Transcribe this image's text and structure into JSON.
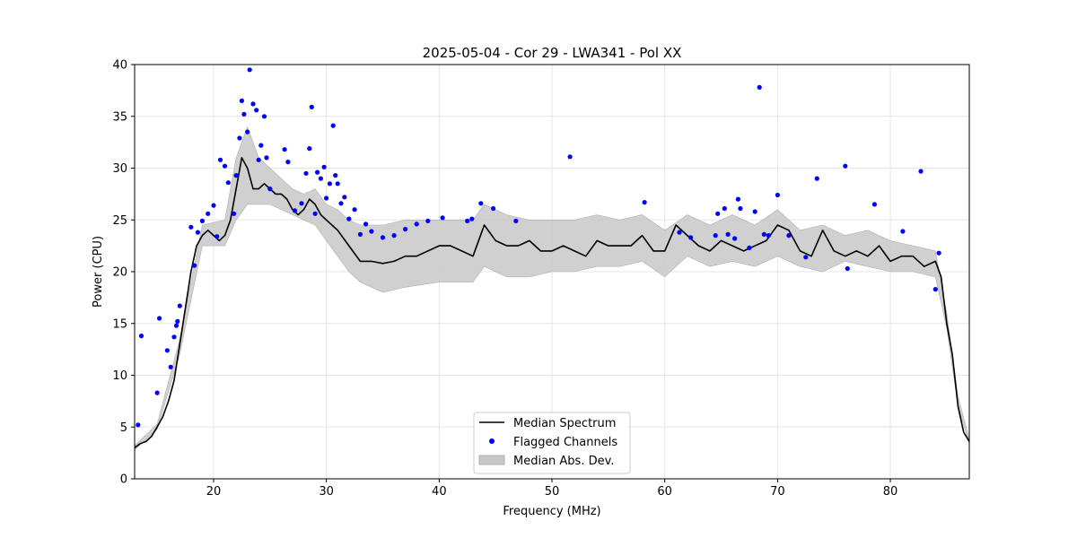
{
  "chart_data": {
    "type": "line",
    "title": "2025-05-04 - Cor 29 - LWA341 - Pol XX",
    "xlabel": "Frequency (MHz)",
    "ylabel": "Power (CPU)",
    "xlim": [
      13.0,
      87.0
    ],
    "ylim": [
      0,
      40
    ],
    "xticks": [
      20,
      30,
      40,
      50,
      60,
      70,
      80
    ],
    "yticks": [
      0,
      5,
      10,
      15,
      20,
      25,
      30,
      35,
      40
    ],
    "grid": true,
    "legend": {
      "placement": "lower center",
      "entries": [
        "Median Spectrum",
        "Flagged Channels",
        "Median Abs. Dev."
      ]
    },
    "colors": {
      "median": "#000000",
      "flagged": "#0000ff",
      "mad_fill": "#c8c8c8",
      "grid": "#e6e6e6"
    },
    "series": [
      {
        "name": "Median Spectrum",
        "x": [
          13.0,
          13.5,
          14.0,
          14.5,
          15.0,
          15.5,
          16.0,
          16.5,
          17.0,
          17.5,
          18.0,
          18.5,
          19.0,
          19.5,
          20.0,
          20.5,
          21.0,
          21.5,
          22.0,
          22.5,
          23.0,
          23.5,
          24.0,
          24.5,
          25.0,
          25.5,
          26.0,
          26.5,
          27.0,
          27.5,
          28.0,
          28.5,
          29.0,
          29.5,
          30.0,
          30.5,
          31.0,
          32.0,
          33.0,
          34.0,
          35.0,
          36.0,
          37.0,
          38.0,
          39.0,
          40.0,
          41.0,
          42.0,
          43.0,
          44.0,
          45.0,
          46.0,
          47.0,
          48.0,
          49.0,
          50.0,
          51.0,
          52.0,
          53.0,
          54.0,
          55.0,
          56.0,
          57.0,
          58.0,
          59.0,
          60.0,
          61.0,
          62.0,
          63.0,
          64.0,
          65.0,
          66.0,
          67.0,
          68.0,
          69.0,
          70.0,
          71.0,
          72.0,
          73.0,
          74.0,
          75.0,
          76.0,
          77.0,
          78.0,
          79.0,
          80.0,
          81.0,
          82.0,
          83.0,
          84.0,
          84.5,
          85.0,
          85.5,
          86.0,
          86.5,
          87.0
        ],
        "values": [
          3.0,
          3.4,
          3.6,
          4.1,
          5.0,
          6.0,
          7.5,
          9.5,
          13.0,
          16.5,
          20.0,
          22.5,
          23.5,
          24.0,
          23.5,
          23.0,
          23.5,
          25.0,
          28.0,
          31.0,
          30.0,
          28.0,
          28.0,
          28.5,
          28.0,
          27.5,
          27.5,
          27.0,
          26.0,
          25.5,
          26.0,
          27.0,
          26.5,
          25.5,
          25.0,
          24.5,
          24.0,
          22.5,
          21.0,
          21.0,
          20.8,
          21.0,
          21.5,
          21.5,
          22.0,
          22.5,
          22.5,
          22.0,
          21.5,
          24.5,
          23.0,
          22.5,
          22.5,
          23.0,
          22.0,
          22.0,
          22.5,
          22.0,
          21.5,
          23.0,
          22.5,
          22.5,
          22.5,
          23.5,
          22.0,
          22.0,
          24.5,
          23.5,
          22.5,
          22.0,
          23.0,
          22.5,
          22.0,
          22.5,
          23.0,
          24.5,
          24.0,
          22.0,
          21.5,
          24.0,
          22.0,
          21.5,
          22.0,
          21.5,
          22.5,
          21.0,
          21.5,
          21.5,
          20.5,
          21.0,
          19.5,
          15.0,
          12.0,
          7.0,
          4.5,
          3.6
        ]
      },
      {
        "name": "Median Abs. Dev.",
        "x": [
          13.0,
          15.0,
          17.0,
          19.0,
          21.0,
          22.0,
          23.0,
          24.0,
          25.0,
          26.0,
          27.0,
          28.0,
          29.0,
          30.0,
          31.0,
          32.0,
          33.0,
          34.0,
          35.0,
          37.0,
          40.0,
          43.0,
          44.0,
          46.0,
          48.0,
          50.0,
          52.0,
          54.0,
          56.0,
          58.0,
          60.0,
          62.0,
          64.0,
          66.0,
          68.0,
          70.0,
          72.0,
          74.0,
          76.0,
          78.0,
          80.0,
          82.0,
          84.0,
          85.0,
          86.0,
          87.0
        ],
        "lower": [
          2.8,
          4.8,
          12.0,
          22.5,
          22.5,
          25.0,
          26.5,
          26.5,
          26.5,
          26.0,
          25.5,
          25.0,
          24.5,
          23.0,
          21.5,
          20.0,
          19.0,
          18.5,
          18.0,
          18.5,
          19.0,
          19.0,
          20.5,
          19.5,
          19.5,
          20.0,
          20.0,
          20.5,
          20.5,
          21.0,
          19.5,
          21.5,
          20.5,
          21.0,
          20.5,
          21.5,
          20.5,
          20.0,
          21.0,
          20.5,
          20.0,
          20.0,
          19.5,
          14.5,
          7.0,
          3.4
        ],
        "upper": [
          3.2,
          5.3,
          13.5,
          24.5,
          25.0,
          31.0,
          34.0,
          31.0,
          30.0,
          29.0,
          28.0,
          27.5,
          28.0,
          26.5,
          26.0,
          25.0,
          24.5,
          24.5,
          24.5,
          25.0,
          25.0,
          25.0,
          26.5,
          25.5,
          25.0,
          25.0,
          25.0,
          25.5,
          25.0,
          25.5,
          24.0,
          25.5,
          24.5,
          25.5,
          24.5,
          26.0,
          24.0,
          24.5,
          23.5,
          24.0,
          23.0,
          22.5,
          22.0,
          16.0,
          8.0,
          3.8
        ]
      },
      {
        "name": "Flagged Channels",
        "x": [
          13.3,
          13.6,
          15.0,
          15.2,
          15.9,
          16.2,
          16.5,
          16.7,
          16.8,
          17.0,
          18.0,
          18.3,
          18.6,
          19.0,
          19.5,
          20.0,
          20.3,
          20.6,
          21.0,
          21.3,
          21.8,
          22.0,
          22.3,
          22.5,
          22.7,
          23.0,
          23.2,
          23.5,
          23.8,
          24.0,
          24.2,
          24.5,
          24.7,
          25.0,
          26.3,
          26.6,
          27.2,
          27.8,
          28.2,
          28.5,
          28.7,
          29.0,
          29.2,
          29.5,
          29.8,
          30.0,
          30.3,
          30.6,
          30.8,
          31.0,
          31.3,
          31.6,
          32.0,
          32.5,
          33.0,
          33.5,
          34.0,
          35.0,
          36.0,
          37.0,
          38.0,
          39.0,
          40.3,
          42.5,
          42.9,
          43.7,
          44.8,
          46.8,
          51.6,
          58.2,
          61.3,
          62.3,
          64.5,
          64.7,
          65.3,
          65.6,
          66.2,
          66.5,
          66.7,
          67.5,
          68.0,
          68.4,
          68.8,
          69.2,
          70.0,
          71.0,
          72.5,
          73.5,
          76.0,
          76.2,
          78.6,
          81.1,
          82.7,
          84.0,
          84.3
        ],
        "values": [
          5.2,
          13.8,
          8.3,
          15.5,
          12.4,
          10.8,
          13.7,
          14.8,
          15.2,
          16.7,
          24.3,
          20.6,
          23.8,
          24.9,
          25.6,
          26.4,
          23.4,
          30.8,
          30.2,
          28.6,
          25.6,
          29.3,
          32.9,
          36.5,
          35.2,
          33.5,
          39.5,
          36.2,
          35.6,
          30.8,
          32.2,
          35.0,
          31.0,
          28.0,
          31.8,
          30.6,
          25.9,
          26.6,
          29.5,
          31.9,
          35.9,
          25.6,
          29.6,
          29.0,
          30.1,
          27.1,
          28.5,
          34.1,
          29.3,
          28.5,
          26.6,
          27.2,
          25.1,
          26.0,
          23.6,
          24.6,
          23.9,
          23.3,
          23.5,
          24.1,
          24.6,
          24.9,
          25.2,
          24.9,
          25.1,
          26.6,
          26.1,
          24.9,
          31.1,
          26.7,
          23.8,
          23.3,
          23.5,
          25.6,
          26.1,
          23.6,
          23.2,
          27.0,
          26.1,
          22.3,
          25.8,
          37.8,
          23.6,
          23.5,
          27.4,
          23.5,
          21.4,
          29.0,
          30.2,
          20.3,
          26.5,
          23.9,
          29.7,
          18.3,
          21.8
        ]
      }
    ]
  }
}
